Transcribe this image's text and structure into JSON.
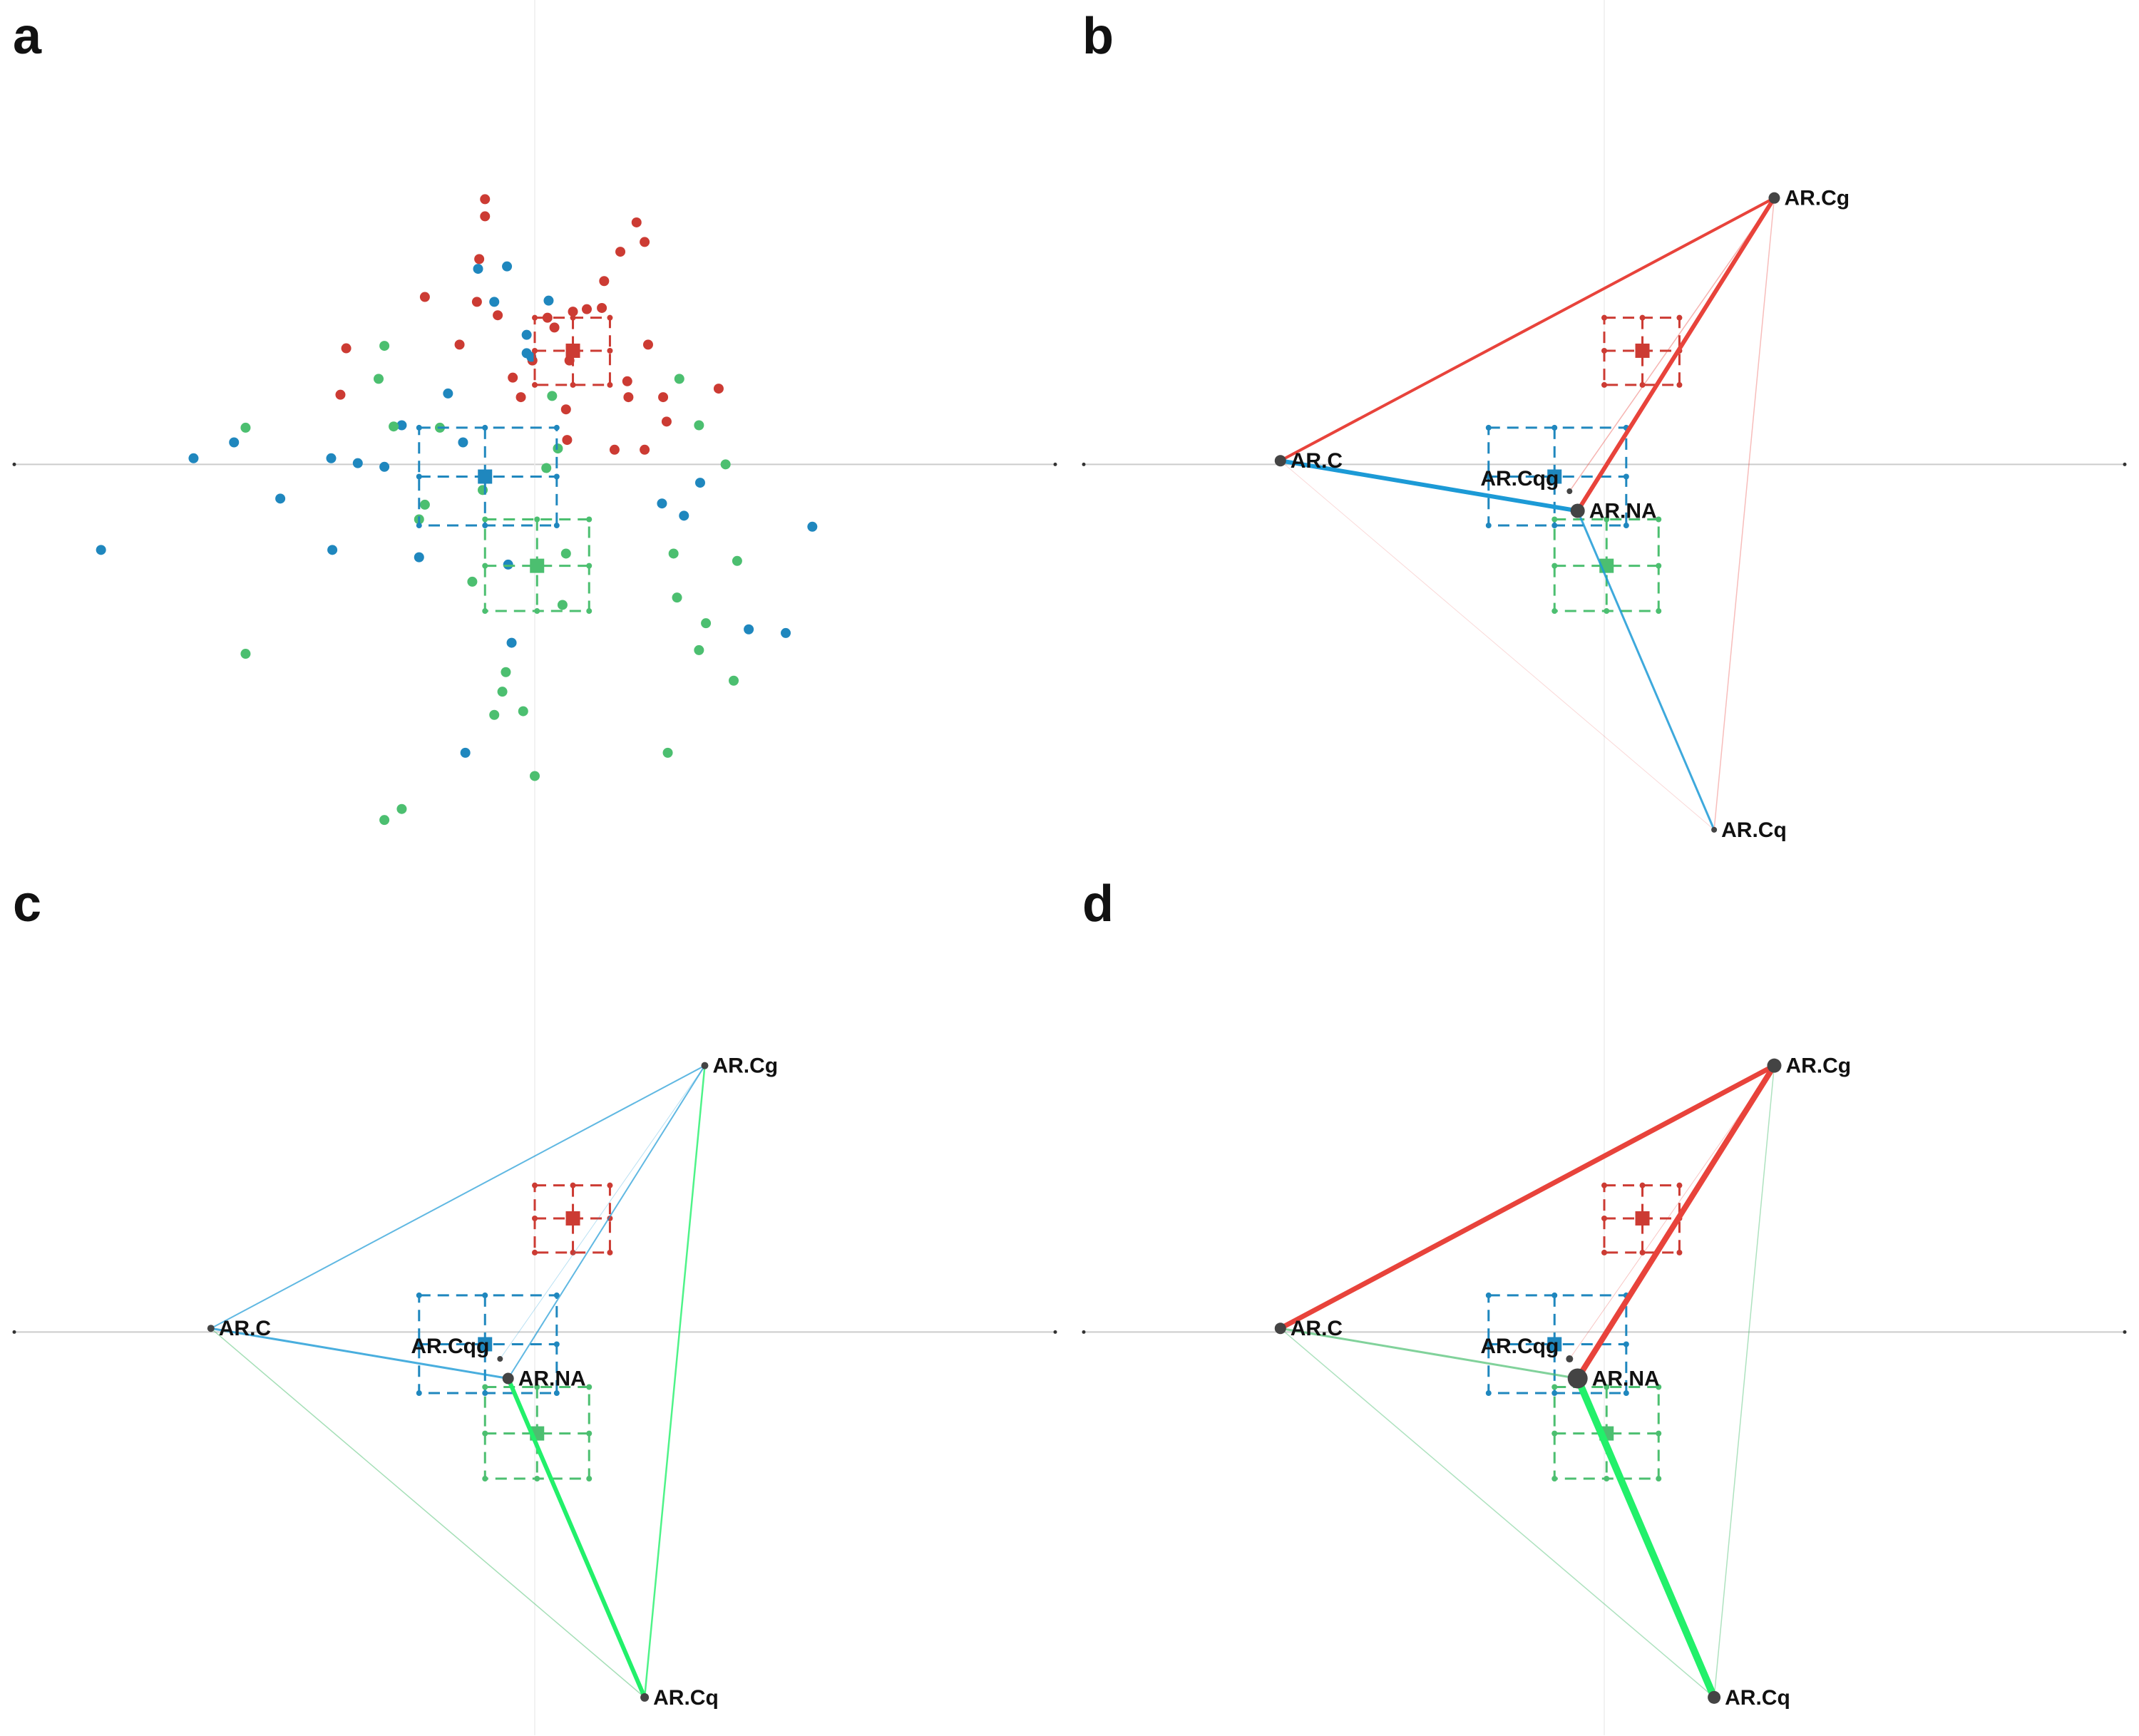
{
  "colors": {
    "red": "#CC3B33",
    "blue": "#1F87BE",
    "green": "#4CBF70",
    "edge_red": "#E8433B",
    "edge_blue": "#1C9AD6",
    "edge_green": "#22F06A",
    "node": "#444444",
    "axis": "#cccccc"
  },
  "panel_labels": [
    "a",
    "b",
    "c",
    "d"
  ],
  "nodes": [
    {
      "name": "AR.Cg",
      "x": 1.47,
      "y": 2.18
    },
    {
      "name": "AR.C",
      "x": -2.8,
      "y": 0.03
    },
    {
      "name": "AR.Cqg",
      "x": -0.3,
      "y": -0.22
    },
    {
      "name": "AR.NA",
      "x": -0.23,
      "y": -0.38
    },
    {
      "name": "AR.Cq",
      "x": 0.95,
      "y": -2.99
    }
  ],
  "chart_data": [
    {
      "panel": "a",
      "type": "scatter",
      "xlim": [
        -4.5,
        4.5
      ],
      "ylim": [
        -3.3,
        3.8
      ],
      "series": [
        {
          "color": "#CC3B33",
          "points": [
            [
              -0.43,
              2.17
            ],
            [
              -0.43,
              2.03
            ],
            [
              -0.48,
              1.68
            ],
            [
              0.88,
              1.98
            ],
            [
              0.95,
              1.82
            ],
            [
              0.74,
              1.74
            ],
            [
              -0.5,
              1.33
            ],
            [
              0.6,
              1.5
            ],
            [
              0.45,
              1.27
            ],
            [
              0.58,
              1.28
            ],
            [
              0.33,
              1.25
            ],
            [
              -0.95,
              1.37
            ],
            [
              -0.32,
              1.22
            ],
            [
              0.17,
              1.12
            ],
            [
              -1.63,
              0.95
            ],
            [
              -0.65,
              0.98
            ],
            [
              -1.68,
              0.57
            ],
            [
              0.98,
              0.98
            ],
            [
              -0.02,
              0.85
            ],
            [
              0.8,
              0.68
            ],
            [
              -0.19,
              0.71
            ],
            [
              0.81,
              0.55
            ],
            [
              1.11,
              0.55
            ],
            [
              0.27,
              0.45
            ],
            [
              1.59,
              0.62
            ],
            [
              0.28,
              0.2
            ],
            [
              1.14,
              0.35
            ],
            [
              0.95,
              0.12
            ],
            [
              -0.12,
              0.55
            ],
            [
              0.69,
              0.12
            ],
            [
              0.3,
              0.85
            ],
            [
              0.11,
              1.2
            ]
          ]
        },
        {
          "color": "#1F87BE",
          "points": [
            [
              -0.49,
              1.6
            ],
            [
              -0.24,
              1.62
            ],
            [
              -0.35,
              1.33
            ],
            [
              0.12,
              1.34
            ],
            [
              -0.07,
              1.06
            ],
            [
              -0.07,
              0.91
            ],
            [
              -0.03,
              0.88
            ],
            [
              -0.75,
              0.58
            ],
            [
              -1.15,
              0.32
            ],
            [
              -0.62,
              0.18
            ],
            [
              -2.95,
              0.05
            ],
            [
              -2.6,
              0.18
            ],
            [
              -1.76,
              0.05
            ],
            [
              -1.53,
              0.01
            ],
            [
              -1.3,
              -0.02
            ],
            [
              -2.2,
              -0.28
            ],
            [
              -3.75,
              -0.7
            ],
            [
              -1.75,
              -0.7
            ],
            [
              -1.0,
              -0.76
            ],
            [
              -0.23,
              -0.82
            ],
            [
              1.1,
              -0.32
            ],
            [
              1.43,
              -0.15
            ],
            [
              1.29,
              -0.42
            ],
            [
              2.4,
              -0.51
            ],
            [
              1.85,
              -1.35
            ],
            [
              2.17,
              -1.38
            ],
            [
              -0.2,
              -1.46
            ],
            [
              -0.6,
              -2.36
            ]
          ]
        },
        {
          "color": "#4CBF70",
          "points": [
            [
              -1.3,
              0.97
            ],
            [
              -1.35,
              0.7
            ],
            [
              -2.5,
              0.3
            ],
            [
              -1.22,
              0.31
            ],
            [
              -0.82,
              0.3
            ],
            [
              -0.95,
              -0.33
            ],
            [
              -1.0,
              -0.45
            ],
            [
              0.15,
              0.56
            ],
            [
              0.2,
              0.13
            ],
            [
              0.1,
              -0.03
            ],
            [
              -0.45,
              -0.21
            ],
            [
              1.25,
              0.7
            ],
            [
              1.42,
              0.32
            ],
            [
              1.65,
              0.0
            ],
            [
              0.27,
              -0.73
            ],
            [
              1.2,
              -0.73
            ],
            [
              1.75,
              -0.79
            ],
            [
              -0.54,
              -0.96
            ],
            [
              0.24,
              -1.15
            ],
            [
              1.23,
              -1.09
            ],
            [
              1.48,
              -1.3
            ],
            [
              1.42,
              -1.52
            ],
            [
              1.72,
              -1.77
            ],
            [
              -2.5,
              -1.55
            ],
            [
              -0.25,
              -1.7
            ],
            [
              -0.28,
              -1.86
            ],
            [
              -0.35,
              -2.05
            ],
            [
              -0.1,
              -2.02
            ],
            [
              1.15,
              -2.36
            ],
            [
              0.0,
              -2.55
            ],
            [
              -1.15,
              -2.82
            ],
            [
              -1.3,
              -2.91
            ]
          ]
        }
      ],
      "group_summaries": [
        {
          "color": "#CC3B33",
          "center": [
            0.33,
            0.93
          ],
          "box": [
            0.0,
            0.65,
            0.65,
            1.2
          ]
        },
        {
          "color": "#1F87BE",
          "center": [
            -0.43,
            -0.1
          ],
          "box": [
            -1.0,
            0.3,
            0.19,
            -0.5
          ]
        },
        {
          "color": "#4CBF70",
          "center": [
            0.02,
            -0.83
          ],
          "box": [
            -0.43,
            -0.45,
            0.47,
            -1.2
          ]
        }
      ]
    },
    {
      "panel": "b",
      "type": "network",
      "edges": [
        {
          "from": "AR.C",
          "to": "AR.Cg",
          "color": "#E8433B",
          "width": 4,
          "opacity": 1
        },
        {
          "from": "AR.NA",
          "to": "AR.Cg",
          "color": "#E8433B",
          "width": 6,
          "opacity": 1
        },
        {
          "from": "AR.C",
          "to": "AR.NA",
          "color": "#1C9AD6",
          "width": 6,
          "opacity": 1
        },
        {
          "from": "AR.NA",
          "to": "AR.Cq",
          "color": "#1C9AD6",
          "width": 3,
          "opacity": 0.85
        },
        {
          "from": "AR.Cg",
          "to": "AR.Cq",
          "color": "#E8433B",
          "width": 1.5,
          "opacity": 0.35
        },
        {
          "from": "AR.Cqg",
          "to": "AR.Cg",
          "color": "#E8433B",
          "width": 1.5,
          "opacity": 0.4
        },
        {
          "from": "AR.C",
          "to": "AR.Cq",
          "color": "#E8433B",
          "width": 1,
          "opacity": 0.2
        }
      ],
      "node_sizes": {
        "AR.Cg": 8,
        "AR.C": 8,
        "AR.Cqg": 4,
        "AR.NA": 10,
        "AR.Cq": 4
      }
    },
    {
      "panel": "c",
      "type": "network",
      "edges": [
        {
          "from": "AR.C",
          "to": "AR.Cg",
          "color": "#1C9AD6",
          "width": 2,
          "opacity": 0.7
        },
        {
          "from": "AR.NA",
          "to": "AR.Cg",
          "color": "#1C9AD6",
          "width": 2,
          "opacity": 0.7
        },
        {
          "from": "AR.C",
          "to": "AR.NA",
          "color": "#1C9AD6",
          "width": 3,
          "opacity": 0.8
        },
        {
          "from": "AR.NA",
          "to": "AR.Cq",
          "color": "#22F06A",
          "width": 6,
          "opacity": 1
        },
        {
          "from": "AR.Cg",
          "to": "AR.Cq",
          "color": "#22F06A",
          "width": 2.5,
          "opacity": 0.8
        },
        {
          "from": "AR.C",
          "to": "AR.Cq",
          "color": "#4CBF70",
          "width": 1.5,
          "opacity": 0.5
        },
        {
          "from": "AR.Cqg",
          "to": "AR.Cg",
          "color": "#1C9AD6",
          "width": 1,
          "opacity": 0.3
        }
      ],
      "node_sizes": {
        "AR.Cg": 5,
        "AR.C": 5,
        "AR.Cqg": 4,
        "AR.NA": 8,
        "AR.Cq": 6
      }
    },
    {
      "panel": "d",
      "type": "network",
      "edges": [
        {
          "from": "AR.C",
          "to": "AR.Cg",
          "color": "#E8433B",
          "width": 7,
          "opacity": 1
        },
        {
          "from": "AR.NA",
          "to": "AR.Cg",
          "color": "#E8433B",
          "width": 8,
          "opacity": 1
        },
        {
          "from": "AR.C",
          "to": "AR.NA",
          "color": "#4CBF70",
          "width": 3,
          "opacity": 0.7
        },
        {
          "from": "AR.NA",
          "to": "AR.Cq",
          "color": "#22F06A",
          "width": 10,
          "opacity": 1
        },
        {
          "from": "AR.Cg",
          "to": "AR.Cq",
          "color": "#4CBF70",
          "width": 1.5,
          "opacity": 0.45
        },
        {
          "from": "AR.C",
          "to": "AR.Cq",
          "color": "#4CBF70",
          "width": 1.5,
          "opacity": 0.45
        },
        {
          "from": "AR.Cqg",
          "to": "AR.Cg",
          "color": "#E8433B",
          "width": 1,
          "opacity": 0.3
        }
      ],
      "node_sizes": {
        "AR.Cg": 10,
        "AR.C": 8,
        "AR.Cqg": 5,
        "AR.NA": 14,
        "AR.Cq": 9
      }
    }
  ]
}
